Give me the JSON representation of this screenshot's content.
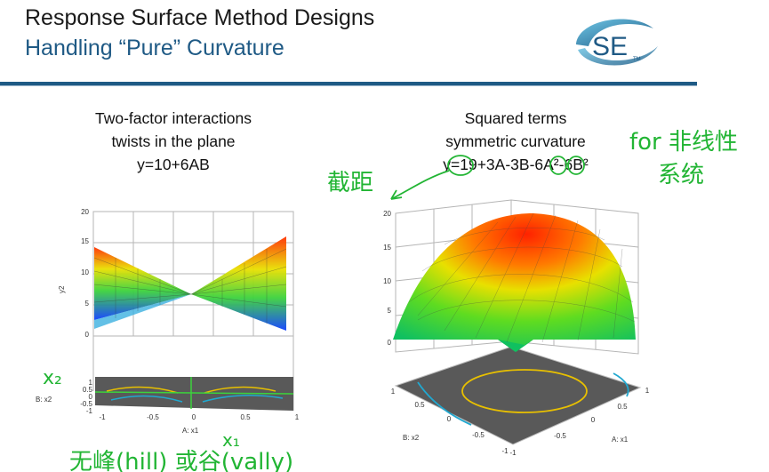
{
  "header": {
    "title_line1": "Response Surface Method Designs",
    "title_line2": "Handling “Pure” Curvature",
    "logo_text": "SE",
    "logo_tm": "TM"
  },
  "left_panel": {
    "caption": [
      "Two-factor interactions",
      "twists in the plane",
      "y=10+6AB"
    ],
    "z_ticks": [
      "20",
      "15",
      "10",
      "5",
      "0"
    ],
    "z_label": "y2",
    "x_ticks": [
      "-1",
      "-0.5",
      "0",
      "0.5",
      "1"
    ],
    "x_label": "A: x1",
    "y_ticks": [
      "1",
      "0.5",
      "0",
      "-0.5",
      "-1"
    ],
    "y_label": "B: x2"
  },
  "right_panel": {
    "caption": [
      "Squared terms",
      "symmetric curvature",
      "y=19+3A-3B-6A²-6B²"
    ],
    "z_ticks": [
      "20",
      "15",
      "10",
      "5",
      "0"
    ],
    "x_ticks": [
      "-1",
      "-0.5",
      "0",
      "0.5",
      "1"
    ],
    "x_label": "A: x1",
    "y_ticks": [
      "1",
      "0.5",
      "0",
      "-0.5",
      "-1"
    ],
    "y_label": "B: x2"
  },
  "annotations": {
    "note_intercept": "截距",
    "note_nonlinear_1": "for 非线性",
    "note_nonlinear_2": "系统",
    "note_x1": "x₁",
    "note_x2": "x₂",
    "note_bottom": "无峰(hill) 或谷(vally)"
  },
  "colors": {
    "title_blue": "#1f5a85",
    "handwriting_green": "#22b534"
  }
}
